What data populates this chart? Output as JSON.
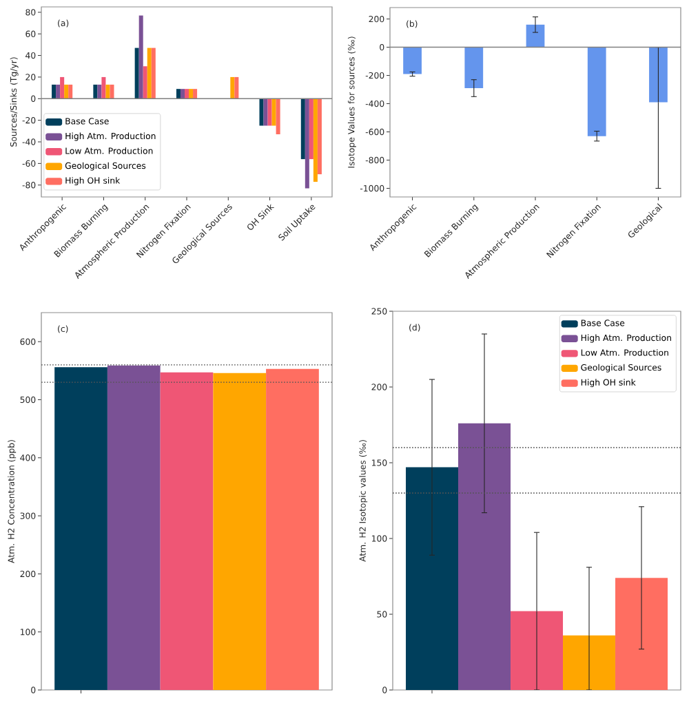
{
  "chart_data": [
    {
      "type": "bar",
      "ylabel": "Sources/Sinks (Tg/yr)",
      "annotations": [
        "(a)"
      ],
      "categories": [
        "Anthropogenic",
        "Biomass Burning",
        "Atmospheric Production",
        "Nitrogen Fixation",
        "Geological Sources",
        "OH Sink",
        "Soil Uptake"
      ],
      "series": [
        {
          "name": "Base Case",
          "color": "#003f5c",
          "values": [
            13,
            13,
            47,
            9,
            0,
            -25,
            -56
          ]
        },
        {
          "name": "High Atm. Production",
          "color": "#7a5195",
          "values": [
            13,
            13,
            77,
            9,
            0,
            -25,
            -83
          ]
        },
        {
          "name": "Low Atm. Production",
          "color": "#ef5675",
          "values": [
            20,
            20,
            30,
            9,
            0,
            -25,
            -56
          ]
        },
        {
          "name": "Geological Sources",
          "color": "#ffa600",
          "values": [
            13,
            13,
            47,
            9,
            20,
            -25,
            -77
          ]
        },
        {
          "name": "High OH sink",
          "color": "#ff6e61",
          "values": [
            13,
            13,
            47,
            9,
            20,
            -33,
            -70
          ]
        }
      ],
      "ylim": [
        -91,
        85
      ],
      "yticks": [
        -80,
        -60,
        -40,
        -20,
        0,
        20,
        40,
        60,
        80
      ],
      "ref_lines": [
        {
          "axis": "y",
          "value": 0,
          "color": "#808080"
        }
      ],
      "legend": "bottom left"
    },
    {
      "type": "bar",
      "ylabel": "Isotope Values for sources (‰)",
      "annotations": [
        "(b)"
      ],
      "categories": [
        "Anthropogenic",
        "Biomass Burning",
        "Atmospheric Production",
        "Nitrogen Fixation",
        "Geological"
      ],
      "values": [
        -190,
        -290,
        160,
        -630,
        -390
      ],
      "color": "#6495ed",
      "errors": [
        15,
        60,
        55,
        35,
        [
          -1000,
          0
        ]
      ],
      "ylim": [
        -1061,
        281
      ],
      "yticks": [
        -1000,
        -800,
        -600,
        -400,
        -200,
        0,
        200
      ],
      "ref_lines": [
        {
          "axis": "y",
          "value": 0,
          "color": "#808080"
        }
      ]
    },
    {
      "type": "bar",
      "ylabel": "Atm. H2 Concentration (ppb)",
      "annotations": [
        "(c)"
      ],
      "categories": [
        null
      ],
      "series": [
        {
          "color": "#003f5c",
          "values": [
            556
          ]
        },
        {
          "color": "#7a5195",
          "values": [
            559
          ]
        },
        {
          "color": "#ef5675",
          "values": [
            547
          ]
        },
        {
          "color": "#ffa600",
          "values": [
            546
          ]
        },
        {
          "color": "#ff6e61",
          "values": [
            553
          ]
        }
      ],
      "ylim": [
        0,
        650
      ],
      "yticks": [
        0,
        100,
        200,
        300,
        400,
        500,
        600
      ],
      "ref_lines": [
        {
          "axis": "y",
          "value": 560,
          "color": "#555555",
          "line_style": "dotted"
        },
        {
          "axis": "y",
          "value": 530,
          "color": "#555555",
          "line_style": "dotted"
        }
      ]
    },
    {
      "type": "bar",
      "ylabel": "Atm. H2 Isotopic values (‰)",
      "annotations": [
        "(d)"
      ],
      "categories": [
        null
      ],
      "series": [
        {
          "name": "Base Case",
          "color": "#003f5c",
          "values": [
            147
          ],
          "errors": [
            58
          ]
        },
        {
          "name": "High Atm. Production",
          "color": "#7a5195",
          "values": [
            176
          ],
          "errors": [
            59
          ]
        },
        {
          "name": "Low Atm. Production",
          "color": "#ef5675",
          "values": [
            52
          ],
          "errors": [
            52
          ]
        },
        {
          "name": "Geological Sources",
          "color": "#ffa600",
          "values": [
            36
          ],
          "errors": [
            [
              0,
              81
            ]
          ]
        },
        {
          "name": "High OH sink",
          "color": "#ff6e61",
          "values": [
            74
          ],
          "errors": [
            47
          ]
        }
      ],
      "ylim": [
        0,
        250
      ],
      "yticks": [
        0,
        50,
        100,
        150,
        200,
        250
      ],
      "ref_lines": [
        {
          "axis": "y",
          "value": 160,
          "color": "#555555",
          "line_style": "dotted"
        },
        {
          "axis": "y",
          "value": 130,
          "color": "#555555",
          "line_style": "dotted"
        }
      ],
      "legend": "top right"
    }
  ]
}
